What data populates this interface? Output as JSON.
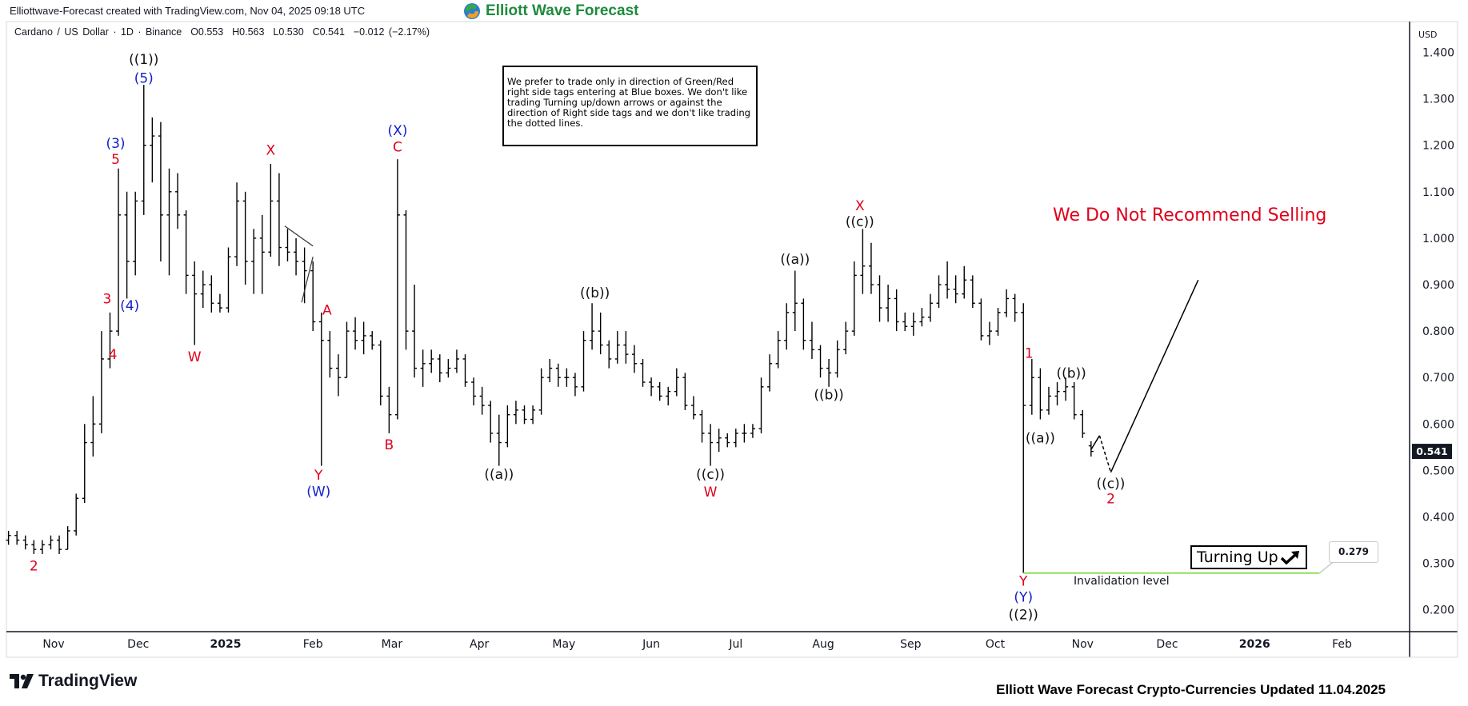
{
  "header": {
    "created_text": "Elliottwave-Forecast created with TradingView.com, Nov 04, 2025 09:18 UTC",
    "logo_text": "Elliott Wave Forecast"
  },
  "legend": {
    "symbol": "Cardano / US Dollar · 1D · Binance",
    "open": "O0.553",
    "high": "H0.563",
    "low": "L0.530",
    "close": "C0.541",
    "change": "−0.012 (−2.17%)"
  },
  "note_box": "We prefer to trade only in direction of Green/Red right side tags entering at Blue boxes. We don't like trading Turning up/down arrows or against the direction of Right side tags and we don't like trading the dotted lines.",
  "recommendation": "We Do Not Recommend Selling",
  "turning_up": {
    "label": "Turning Up",
    "icon": "arrow-up-right-icon"
  },
  "invalidation": {
    "label": "Invalidation level",
    "price_label": "0.279",
    "price": 0.279,
    "color": "#8fde5a"
  },
  "price_axis": {
    "currency": "USD",
    "last_price": "0.541"
  },
  "footer": {
    "brand": "TradingView",
    "caption": "Elliott Wave Forecast Crypto-Currencies Updated 11.04.2025"
  },
  "colors": {
    "red": "#e0001b",
    "blue": "#1520c8",
    "black": "#111111",
    "logo_green": "#1e8a3c"
  },
  "chart_data": {
    "type": "ohlc",
    "interval": "1D",
    "ylim": [
      0.15,
      1.45
    ],
    "grid": false,
    "y_ticks": [
      "0.200",
      "0.300",
      "0.400",
      "0.500",
      "0.600",
      "0.700",
      "0.800",
      "0.900",
      "1.000",
      "1.100",
      "1.200",
      "1.300",
      "1.400"
    ],
    "x_ticks": [
      {
        "label": "Nov",
        "date": "2024-11-01"
      },
      {
        "label": "Dec",
        "date": "2024-12-01"
      },
      {
        "label": "2025",
        "date": "2025-01-01",
        "bold": true
      },
      {
        "label": "Feb",
        "date": "2025-02-01"
      },
      {
        "label": "Mar",
        "date": "2025-03-01"
      },
      {
        "label": "Apr",
        "date": "2025-04-01"
      },
      {
        "label": "May",
        "date": "2025-05-01"
      },
      {
        "label": "Jun",
        "date": "2025-06-01"
      },
      {
        "label": "Jul",
        "date": "2025-07-01"
      },
      {
        "label": "Aug",
        "date": "2025-08-01"
      },
      {
        "label": "Sep",
        "date": "2025-09-01"
      },
      {
        "label": "Oct",
        "date": "2025-10-01"
      },
      {
        "label": "Nov",
        "date": "2025-11-01"
      },
      {
        "label": "Dec",
        "date": "2025-12-01"
      },
      {
        "label": "2026",
        "date": "2026-01-01",
        "bold": true
      },
      {
        "label": "Feb",
        "date": "2026-02-01"
      }
    ],
    "bars": [
      [
        "2024-10-16",
        0.35,
        0.37,
        0.34,
        0.36
      ],
      [
        "2024-10-19",
        0.36,
        0.37,
        0.34,
        0.35
      ],
      [
        "2024-10-22",
        0.35,
        0.36,
        0.33,
        0.34
      ],
      [
        "2024-10-25",
        0.34,
        0.35,
        0.32,
        0.33
      ],
      [
        "2024-10-28",
        0.33,
        0.35,
        0.32,
        0.34
      ],
      [
        "2024-10-31",
        0.34,
        0.36,
        0.33,
        0.35
      ],
      [
        "2024-11-03",
        0.35,
        0.36,
        0.32,
        0.33
      ],
      [
        "2024-11-06",
        0.33,
        0.38,
        0.33,
        0.37
      ],
      [
        "2024-11-09",
        0.37,
        0.45,
        0.36,
        0.44
      ],
      [
        "2024-11-12",
        0.44,
        0.6,
        0.43,
        0.56
      ],
      [
        "2024-11-15",
        0.56,
        0.66,
        0.53,
        0.6
      ],
      [
        "2024-11-18",
        0.6,
        0.8,
        0.58,
        0.74
      ],
      [
        "2024-11-21",
        0.74,
        0.84,
        0.72,
        0.8
      ],
      [
        "2024-11-24",
        0.8,
        1.15,
        0.79,
        1.05
      ],
      [
        "2024-11-27",
        1.05,
        1.1,
        0.87,
        0.95
      ],
      [
        "2024-11-30",
        0.95,
        1.1,
        0.92,
        1.08
      ],
      [
        "2024-12-03",
        1.08,
        1.33,
        1.05,
        1.2
      ],
      [
        "2024-12-06",
        1.2,
        1.26,
        1.12,
        1.22
      ],
      [
        "2024-12-09",
        1.22,
        1.25,
        0.95,
        1.05
      ],
      [
        "2024-12-12",
        1.05,
        1.15,
        0.92,
        1.1
      ],
      [
        "2024-12-15",
        1.1,
        1.14,
        1.02,
        1.05
      ],
      [
        "2024-12-18",
        1.05,
        1.06,
        0.88,
        0.92
      ],
      [
        "2024-12-21",
        0.92,
        0.95,
        0.77,
        0.88
      ],
      [
        "2024-12-24",
        0.88,
        0.93,
        0.85,
        0.9
      ],
      [
        "2024-12-27",
        0.9,
        0.92,
        0.84,
        0.86
      ],
      [
        "2024-12-30",
        0.86,
        0.88,
        0.84,
        0.85
      ],
      [
        "2025-01-02",
        0.85,
        0.98,
        0.84,
        0.96
      ],
      [
        "2025-01-05",
        0.96,
        1.12,
        0.94,
        1.08
      ],
      [
        "2025-01-08",
        1.08,
        1.1,
        0.9,
        0.95
      ],
      [
        "2025-01-11",
        0.95,
        1.02,
        0.88,
        1.0
      ],
      [
        "2025-01-14",
        1.0,
        1.05,
        0.88,
        0.97
      ],
      [
        "2025-01-17",
        0.97,
        1.16,
        0.96,
        1.08
      ],
      [
        "2025-01-20",
        1.08,
        1.14,
        0.94,
        0.98
      ],
      [
        "2025-01-23",
        0.98,
        1.02,
        0.95,
        0.97
      ],
      [
        "2025-01-26",
        0.97,
        1.0,
        0.92,
        0.95
      ],
      [
        "2025-01-29",
        0.95,
        0.98,
        0.86,
        0.93
      ],
      [
        "2025-02-01",
        0.93,
        0.95,
        0.8,
        0.82
      ],
      [
        "2025-02-04",
        0.82,
        0.84,
        0.51,
        0.78
      ],
      [
        "2025-02-07",
        0.78,
        0.8,
        0.7,
        0.72
      ],
      [
        "2025-02-10",
        0.72,
        0.75,
        0.66,
        0.7
      ],
      [
        "2025-02-13",
        0.7,
        0.82,
        0.7,
        0.8
      ],
      [
        "2025-02-16",
        0.8,
        0.83,
        0.76,
        0.78
      ],
      [
        "2025-02-19",
        0.78,
        0.82,
        0.75,
        0.79
      ],
      [
        "2025-02-22",
        0.79,
        0.8,
        0.76,
        0.77
      ],
      [
        "2025-02-25",
        0.77,
        0.78,
        0.64,
        0.66
      ],
      [
        "2025-02-28",
        0.66,
        0.68,
        0.58,
        0.62
      ],
      [
        "2025-03-03",
        0.62,
        1.17,
        0.61,
        1.05
      ],
      [
        "2025-03-06",
        1.05,
        1.06,
        0.76,
        0.8
      ],
      [
        "2025-03-09",
        0.8,
        0.9,
        0.7,
        0.72
      ],
      [
        "2025-03-12",
        0.72,
        0.76,
        0.68,
        0.73
      ],
      [
        "2025-03-15",
        0.73,
        0.76,
        0.71,
        0.74
      ],
      [
        "2025-03-18",
        0.74,
        0.75,
        0.69,
        0.71
      ],
      [
        "2025-03-21",
        0.71,
        0.74,
        0.7,
        0.72
      ],
      [
        "2025-03-24",
        0.72,
        0.76,
        0.71,
        0.74
      ],
      [
        "2025-03-27",
        0.74,
        0.75,
        0.68,
        0.69
      ],
      [
        "2025-03-30",
        0.69,
        0.7,
        0.64,
        0.66
      ],
      [
        "2025-04-02",
        0.66,
        0.68,
        0.62,
        0.64
      ],
      [
        "2025-04-05",
        0.64,
        0.65,
        0.56,
        0.58
      ],
      [
        "2025-04-08",
        0.58,
        0.62,
        0.51,
        0.56
      ],
      [
        "2025-04-11",
        0.56,
        0.64,
        0.55,
        0.62
      ],
      [
        "2025-04-14",
        0.62,
        0.65,
        0.6,
        0.63
      ],
      [
        "2025-04-17",
        0.63,
        0.64,
        0.6,
        0.61
      ],
      [
        "2025-04-20",
        0.61,
        0.64,
        0.6,
        0.63
      ],
      [
        "2025-04-23",
        0.63,
        0.72,
        0.62,
        0.7
      ],
      [
        "2025-04-26",
        0.7,
        0.74,
        0.69,
        0.72
      ],
      [
        "2025-04-29",
        0.72,
        0.73,
        0.68,
        0.7
      ],
      [
        "2025-05-02",
        0.7,
        0.72,
        0.68,
        0.7
      ],
      [
        "2025-05-05",
        0.7,
        0.71,
        0.66,
        0.68
      ],
      [
        "2025-05-08",
        0.68,
        0.8,
        0.67,
        0.78
      ],
      [
        "2025-05-11",
        0.78,
        0.86,
        0.76,
        0.8
      ],
      [
        "2025-05-14",
        0.8,
        0.84,
        0.75,
        0.77
      ],
      [
        "2025-05-17",
        0.77,
        0.78,
        0.72,
        0.74
      ],
      [
        "2025-05-20",
        0.74,
        0.8,
        0.73,
        0.77
      ],
      [
        "2025-05-23",
        0.77,
        0.8,
        0.73,
        0.75
      ],
      [
        "2025-05-26",
        0.75,
        0.77,
        0.71,
        0.73
      ],
      [
        "2025-05-29",
        0.73,
        0.74,
        0.68,
        0.69
      ],
      [
        "2025-06-01",
        0.69,
        0.7,
        0.66,
        0.68
      ],
      [
        "2025-06-04",
        0.68,
        0.69,
        0.65,
        0.66
      ],
      [
        "2025-06-07",
        0.66,
        0.68,
        0.64,
        0.67
      ],
      [
        "2025-06-10",
        0.67,
        0.72,
        0.66,
        0.7
      ],
      [
        "2025-06-13",
        0.7,
        0.71,
        0.63,
        0.64
      ],
      [
        "2025-06-16",
        0.64,
        0.66,
        0.61,
        0.62
      ],
      [
        "2025-06-19",
        0.62,
        0.63,
        0.56,
        0.58
      ],
      [
        "2025-06-22",
        0.58,
        0.6,
        0.51,
        0.56
      ],
      [
        "2025-06-25",
        0.56,
        0.59,
        0.54,
        0.57
      ],
      [
        "2025-06-28",
        0.57,
        0.58,
        0.55,
        0.56
      ],
      [
        "2025-07-01",
        0.56,
        0.59,
        0.55,
        0.58
      ],
      [
        "2025-07-04",
        0.58,
        0.6,
        0.56,
        0.58
      ],
      [
        "2025-07-07",
        0.58,
        0.6,
        0.57,
        0.59
      ],
      [
        "2025-07-10",
        0.59,
        0.7,
        0.58,
        0.68
      ],
      [
        "2025-07-13",
        0.68,
        0.75,
        0.67,
        0.73
      ],
      [
        "2025-07-16",
        0.73,
        0.8,
        0.72,
        0.78
      ],
      [
        "2025-07-19",
        0.78,
        0.86,
        0.76,
        0.84
      ],
      [
        "2025-07-22",
        0.84,
        0.93,
        0.8,
        0.86
      ],
      [
        "2025-07-25",
        0.86,
        0.87,
        0.76,
        0.78
      ],
      [
        "2025-07-28",
        0.78,
        0.82,
        0.74,
        0.76
      ],
      [
        "2025-07-31",
        0.76,
        0.77,
        0.7,
        0.72
      ],
      [
        "2025-08-03",
        0.72,
        0.74,
        0.68,
        0.71
      ],
      [
        "2025-08-06",
        0.71,
        0.78,
        0.7,
        0.76
      ],
      [
        "2025-08-09",
        0.76,
        0.82,
        0.75,
        0.8
      ],
      [
        "2025-08-12",
        0.8,
        0.95,
        0.79,
        0.92
      ],
      [
        "2025-08-15",
        0.92,
        1.02,
        0.88,
        0.94
      ],
      [
        "2025-08-18",
        0.94,
        0.99,
        0.88,
        0.9
      ],
      [
        "2025-08-21",
        0.9,
        0.92,
        0.82,
        0.85
      ],
      [
        "2025-08-24",
        0.85,
        0.9,
        0.82,
        0.87
      ],
      [
        "2025-08-27",
        0.87,
        0.89,
        0.8,
        0.82
      ],
      [
        "2025-08-30",
        0.82,
        0.84,
        0.8,
        0.81
      ],
      [
        "2025-09-02",
        0.81,
        0.84,
        0.79,
        0.82
      ],
      [
        "2025-09-05",
        0.82,
        0.85,
        0.81,
        0.83
      ],
      [
        "2025-09-08",
        0.83,
        0.88,
        0.82,
        0.86
      ],
      [
        "2025-09-11",
        0.86,
        0.92,
        0.85,
        0.9
      ],
      [
        "2025-09-14",
        0.9,
        0.95,
        0.87,
        0.89
      ],
      [
        "2025-09-17",
        0.89,
        0.92,
        0.86,
        0.88
      ],
      [
        "2025-09-20",
        0.88,
        0.94,
        0.87,
        0.91
      ],
      [
        "2025-09-23",
        0.91,
        0.92,
        0.85,
        0.86
      ],
      [
        "2025-09-26",
        0.86,
        0.87,
        0.78,
        0.79
      ],
      [
        "2025-09-29",
        0.79,
        0.82,
        0.77,
        0.8
      ],
      [
        "2025-10-02",
        0.8,
        0.85,
        0.79,
        0.84
      ],
      [
        "2025-10-05",
        0.84,
        0.89,
        0.83,
        0.87
      ],
      [
        "2025-10-08",
        0.87,
        0.88,
        0.82,
        0.84
      ],
      [
        "2025-10-11",
        0.84,
        0.86,
        0.279,
        0.64
      ],
      [
        "2025-10-14",
        0.64,
        0.74,
        0.62,
        0.7
      ],
      [
        "2025-10-17",
        0.7,
        0.72,
        0.61,
        0.63
      ],
      [
        "2025-10-20",
        0.63,
        0.68,
        0.62,
        0.66
      ],
      [
        "2025-10-23",
        0.66,
        0.69,
        0.64,
        0.67
      ],
      [
        "2025-10-26",
        0.67,
        0.7,
        0.65,
        0.68
      ],
      [
        "2025-10-29",
        0.68,
        0.69,
        0.61,
        0.62
      ],
      [
        "2025-11-01",
        0.62,
        0.63,
        0.57,
        0.58
      ],
      [
        "2025-11-04",
        0.553,
        0.563,
        0.53,
        0.541
      ]
    ],
    "annotations": [
      {
        "text": "((1))",
        "color": "black",
        "date": "2024-12-03",
        "price": 1.385
      },
      {
        "text": "(5)",
        "color": "blue",
        "date": "2024-12-03",
        "price": 1.345
      },
      {
        "text": "(3)",
        "color": "blue",
        "date": "2024-11-23",
        "price": 1.205
      },
      {
        "text": "5",
        "color": "red",
        "date": "2024-11-23",
        "price": 1.17
      },
      {
        "text": "3",
        "color": "red",
        "date": "2024-11-20",
        "price": 0.87
      },
      {
        "text": "4",
        "color": "red",
        "date": "2024-11-22",
        "price": 0.75
      },
      {
        "text": "(4)",
        "color": "blue",
        "date": "2024-11-28",
        "price": 0.855
      },
      {
        "text": "2",
        "color": "red",
        "date": "2024-10-25",
        "price": 0.295
      },
      {
        "text": "W",
        "color": "red",
        "date": "2024-12-21",
        "price": 0.745
      },
      {
        "text": "X",
        "color": "red",
        "date": "2025-01-17",
        "price": 1.19
      },
      {
        "text": "A",
        "color": "red",
        "date": "2025-02-06",
        "price": 0.846
      },
      {
        "text": "Y",
        "color": "red",
        "date": "2025-02-03",
        "price": 0.49
      },
      {
        "text": "(W)",
        "color": "blue",
        "date": "2025-02-03",
        "price": 0.455
      },
      {
        "text": "B",
        "color": "red",
        "date": "2025-02-28",
        "price": 0.556
      },
      {
        "text": "(X)",
        "color": "blue",
        "date": "2025-03-03",
        "price": 1.232
      },
      {
        "text": "C",
        "color": "red",
        "date": "2025-03-03",
        "price": 1.197
      },
      {
        "text": "((a))",
        "color": "black",
        "date": "2025-04-08",
        "price": 0.492
      },
      {
        "text": "((b))",
        "color": "black",
        "date": "2025-05-12",
        "price": 0.883
      },
      {
        "text": "((c))",
        "color": "black",
        "date": "2025-06-22",
        "price": 0.492
      },
      {
        "text": "W",
        "color": "red",
        "date": "2025-06-22",
        "price": 0.454
      },
      {
        "text": "((a))",
        "color": "black",
        "date": "2025-07-22",
        "price": 0.955
      },
      {
        "text": "((b))",
        "color": "black",
        "date": "2025-08-03",
        "price": 0.663
      },
      {
        "text": "X",
        "color": "red",
        "date": "2025-08-14",
        "price": 1.07
      },
      {
        "text": "((c))",
        "color": "black",
        "date": "2025-08-14",
        "price": 1.036
      },
      {
        "text": "1",
        "color": "red",
        "date": "2025-10-13",
        "price": 0.753
      },
      {
        "text": "((b))",
        "color": "black",
        "date": "2025-10-28",
        "price": 0.71
      },
      {
        "text": "((a))",
        "color": "black",
        "date": "2025-10-17",
        "price": 0.57
      },
      {
        "text": "Y",
        "color": "red",
        "date": "2025-10-11",
        "price": 0.262
      },
      {
        "text": "(Y)",
        "color": "blue",
        "date": "2025-10-11",
        "price": 0.228
      },
      {
        "text": "((2))",
        "color": "black",
        "date": "2025-10-11",
        "price": 0.19
      },
      {
        "text": "((c))",
        "color": "black",
        "date": "2025-11-11",
        "price": 0.472
      },
      {
        "text": "2",
        "color": "red",
        "date": "2025-11-11",
        "price": 0.44
      }
    ],
    "projection": [
      {
        "from": [
          "2025-11-04",
          0.545
        ],
        "to": [
          "2025-11-07",
          0.575
        ],
        "style": "solid"
      },
      {
        "from": [
          "2025-11-07",
          0.575
        ],
        "to": [
          "2025-11-11",
          0.496
        ],
        "style": "dashed"
      },
      {
        "from": [
          "2025-11-11",
          0.496
        ],
        "to": [
          "2025-12-12",
          0.91
        ],
        "style": "solid"
      }
    ],
    "triangle": [
      {
        "from": [
          "2025-01-22",
          1.026
        ],
        "to": [
          "2025-02-01",
          0.983
        ]
      },
      {
        "from": [
          "2025-01-28",
          0.862
        ],
        "to": [
          "2025-02-01",
          0.96
        ]
      }
    ],
    "invalidation_line": {
      "from": "2025-10-11",
      "to": "2026-01-24",
      "price": 0.279
    }
  }
}
